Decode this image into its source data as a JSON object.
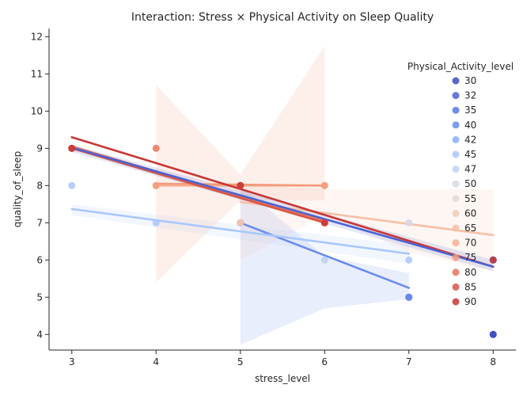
{
  "chart_data": {
    "type": "scatter",
    "title": "Interaction: Stress × Physical Activity on Sleep Quality",
    "xlabel": "stress_level",
    "ylabel": "quality_of_sleep",
    "xlim": [
      2.73,
      8.27
    ],
    "ylim": [
      3.58,
      12.22
    ],
    "xticks": [
      "3",
      "4",
      "5",
      "6",
      "7",
      "8"
    ],
    "yticks": [
      "4",
      "5",
      "6",
      "7",
      "8",
      "9",
      "10",
      "11",
      "12"
    ],
    "grid": false,
    "legend": {
      "title": "Physical_Activity_level",
      "placement": "right"
    },
    "series": [
      {
        "name": "30",
        "color": "#3b4cc0",
        "points": [
          [
            8,
            4
          ],
          [
            8,
            4
          ]
        ]
      },
      {
        "name": "32",
        "color": "#4a63d3",
        "points": [
          [
            8,
            6
          ],
          [
            8,
            6
          ]
        ],
        "fit": {
          "x": [
            8,
            8
          ],
          "y": [
            6,
            6
          ]
        }
      },
      {
        "name": "35",
        "color": "#5a78e4",
        "points": [
          [
            7,
            5
          ],
          [
            7,
            5
          ]
        ]
      },
      {
        "name": "40",
        "color": "#6a8bef",
        "points": [
          [
            5,
            7
          ],
          [
            7,
            5
          ]
        ],
        "fit": {
          "x": [
            5,
            7
          ],
          "y": [
            7.0,
            5.25
          ]
        },
        "band": {
          "x": [
            5,
            6,
            7
          ],
          "lower": [
            3.72,
            4.7,
            4.95
          ],
          "upper": [
            8.0,
            6.1,
            5.65
          ]
        }
      },
      {
        "name": "42",
        "color": "#8caffe",
        "points": [
          [
            5,
            7
          ],
          [
            5,
            7
          ]
        ]
      },
      {
        "name": "45",
        "color": "#aac7fd",
        "points": [
          [
            3,
            8
          ],
          [
            4,
            7
          ],
          [
            7,
            6
          ]
        ],
        "fit": {
          "x": [
            3,
            7
          ],
          "y": [
            7.37,
            6.17
          ]
        },
        "band": {
          "x": [
            3,
            7
          ],
          "lower": [
            7.2,
            5.9
          ],
          "upper": [
            7.5,
            6.4
          ]
        }
      },
      {
        "name": "47",
        "color": "#c0d4f5",
        "points": [
          [
            6,
            6
          ],
          [
            6,
            6
          ]
        ]
      },
      {
        "name": "50",
        "color": "#d5dbe5",
        "points": [
          [
            7,
            7
          ],
          [
            7,
            7
          ]
        ]
      },
      {
        "name": "55",
        "color": "#e2dad5",
        "points": [
          [
            6,
            7
          ],
          [
            5,
            7
          ]
        ]
      },
      {
        "name": "60",
        "color": "#f0cdbb",
        "points": [
          [
            4,
            8
          ],
          [
            4,
            8
          ]
        ]
      },
      {
        "name": "65",
        "color": "#f5c0a7",
        "points": [
          [
            5,
            7
          ],
          [
            6,
            7
          ]
        ],
        "fit": {
          "x": [
            5,
            8
          ],
          "y": [
            7.56,
            6.67
          ]
        },
        "band": {
          "x": [
            5,
            6,
            7,
            8
          ],
          "lower": [
            6.0,
            7.2,
            6.2,
            5.7
          ],
          "upper": [
            8.0,
            7.9,
            7.9,
            7.9
          ]
        }
      },
      {
        "name": "70",
        "color": "#f7b194",
        "points": [
          [
            6,
            8
          ],
          [
            4,
            8
          ]
        ],
        "fit": {
          "x": [
            4,
            6
          ],
          "y": [
            8.0,
            8.0
          ]
        }
      },
      {
        "name": "75",
        "color": "#f39b7a",
        "points": [
          [
            4,
            8
          ],
          [
            5,
            8
          ],
          [
            6,
            8
          ]
        ],
        "fit": {
          "x": [
            4,
            6
          ],
          "y": [
            8.05,
            8.0
          ]
        },
        "band": {
          "x": [
            4,
            5,
            6
          ],
          "lower": [
            5.4,
            7.6,
            7.6
          ],
          "upper": [
            10.7,
            8.3,
            11.75
          ]
        }
      },
      {
        "name": "80",
        "color": "#e8765c",
        "points": [
          [
            4,
            9
          ],
          [
            3,
            9
          ],
          [
            6,
            7
          ]
        ],
        "fit": {
          "x": [
            3,
            6
          ],
          "y": [
            9.05,
            7.05
          ]
        }
      },
      {
        "name": "85",
        "color": "#d95546",
        "points": [
          [
            6,
            7
          ],
          [
            5,
            8
          ],
          [
            3,
            9
          ]
        ],
        "fit": {
          "x": [
            3,
            6
          ],
          "y": [
            9.0,
            7.0
          ]
        }
      },
      {
        "name": "90",
        "color": "#c83737",
        "points": [
          [
            8,
            6
          ],
          [
            5,
            8
          ],
          [
            3,
            9
          ],
          [
            6,
            7
          ]
        ],
        "fit": {
          "x": [
            3,
            8
          ],
          "y": [
            9.3,
            5.82
          ]
        }
      },
      {
        "name": "",
        "color": "#4a63d3",
        "points": [],
        "fit": {
          "x": [
            3,
            8
          ],
          "y": [
            9.02,
            5.82
          ]
        },
        "band": {
          "x": [
            3,
            8
          ],
          "lower": [
            8.9,
            5.7
          ],
          "upper": [
            9.1,
            6.0
          ]
        }
      }
    ]
  }
}
